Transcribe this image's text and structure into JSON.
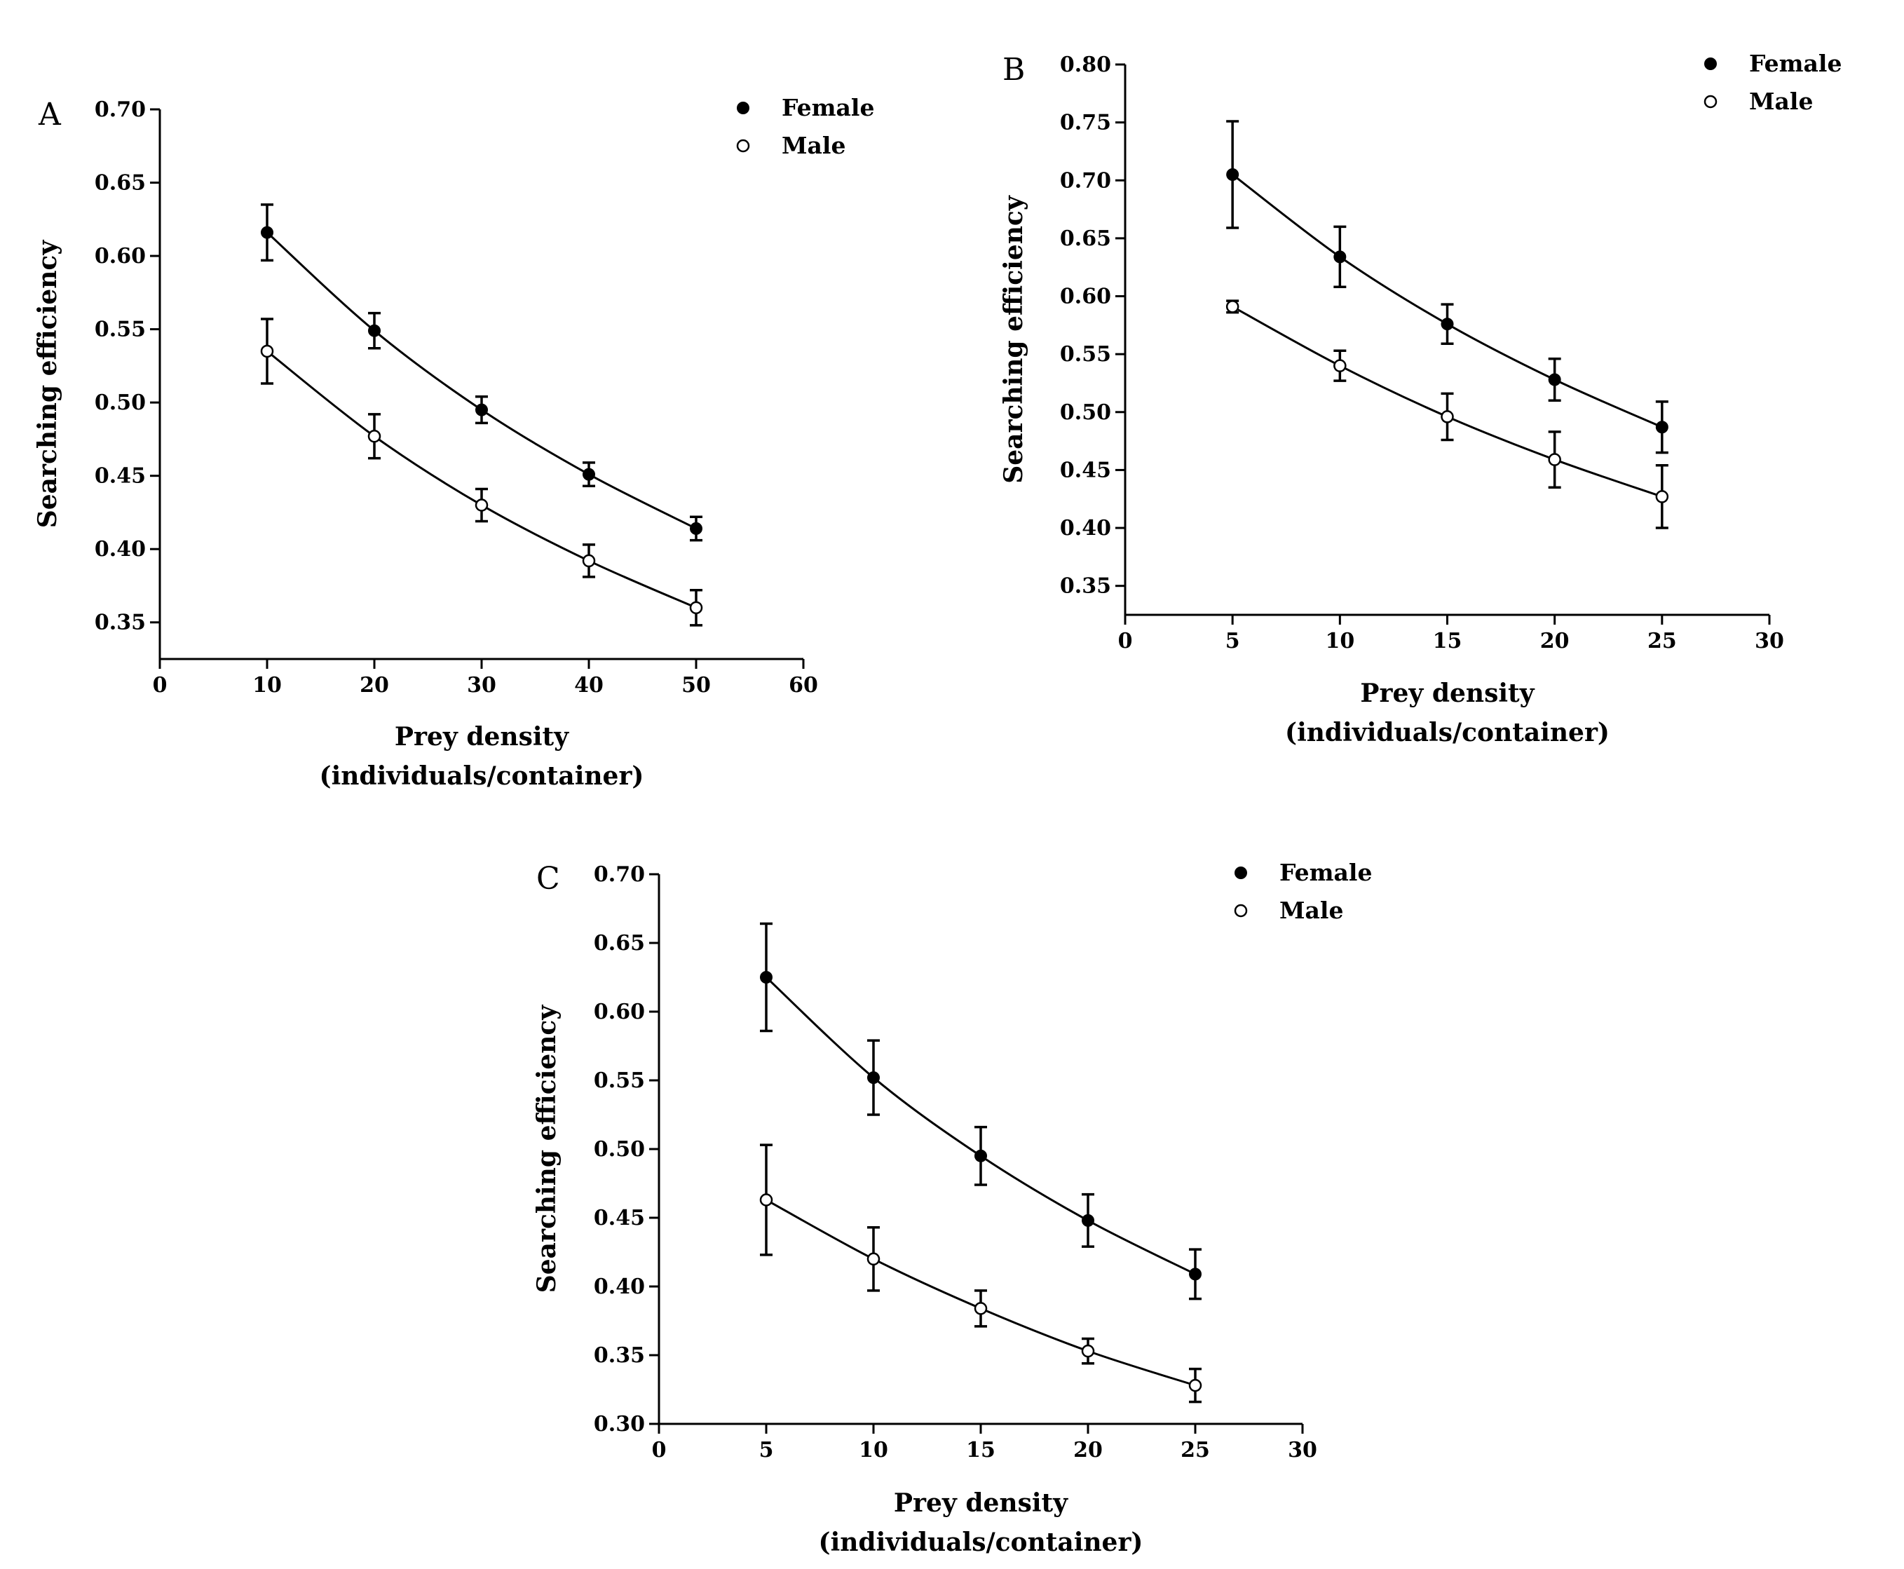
{
  "chart_data": [
    {
      "panel": "A",
      "type": "scatter",
      "title": "",
      "xlabel_line1": "Prey density",
      "xlabel_line2": "(individuals/container)",
      "ylabel": "Searching efficiency",
      "xlim": [
        0,
        60
      ],
      "ylim": [
        0.325,
        0.7
      ],
      "xticks": [
        0,
        10,
        20,
        30,
        40,
        50,
        60
      ],
      "xtick_labels": [
        "0",
        "10",
        "20",
        "30",
        "40",
        "50",
        "60"
      ],
      "yticks": [
        0.35,
        0.4,
        0.45,
        0.5,
        0.55,
        0.6,
        0.65,
        0.7
      ],
      "ytick_labels": [
        "0.35",
        "0.40",
        "0.45",
        "0.50",
        "0.55",
        "0.60",
        "0.65",
        "0.70"
      ],
      "legend_position": "top-right",
      "series": [
        {
          "name": "Female",
          "marker": "filled-circle",
          "x": [
            10,
            20,
            30,
            40,
            50
          ],
          "values": [
            0.616,
            0.549,
            0.495,
            0.451,
            0.414
          ],
          "errors": [
            0.019,
            0.012,
            0.009,
            0.008,
            0.008
          ],
          "fit": [
            0.616,
            0.549,
            0.495,
            0.451,
            0.414
          ]
        },
        {
          "name": "Male",
          "marker": "open-circle",
          "x": [
            10,
            20,
            30,
            40,
            50
          ],
          "values": [
            0.535,
            0.477,
            0.43,
            0.392,
            0.36
          ],
          "errors": [
            0.022,
            0.015,
            0.011,
            0.011,
            0.012
          ],
          "fit": [
            0.535,
            0.477,
            0.43,
            0.392,
            0.36
          ]
        }
      ]
    },
    {
      "panel": "B",
      "type": "scatter",
      "title": "",
      "xlabel_line1": "Prey density",
      "xlabel_line2": "(individuals/container)",
      "ylabel": "Searching efficiency",
      "xlim": [
        0,
        30
      ],
      "ylim": [
        0.325,
        0.8
      ],
      "xticks": [
        0,
        5,
        10,
        15,
        20,
        25,
        30
      ],
      "xtick_labels": [
        "0",
        "5",
        "10",
        "15",
        "20",
        "25",
        "30"
      ],
      "yticks": [
        0.35,
        0.4,
        0.45,
        0.5,
        0.55,
        0.6,
        0.65,
        0.7,
        0.75,
        0.8
      ],
      "ytick_labels": [
        "0.35",
        "0.40",
        "0.45",
        "0.50",
        "0.55",
        "0.60",
        "0.65",
        "0.70",
        "0.75",
        "0.80"
      ],
      "legend_position": "top-right",
      "series": [
        {
          "name": "Female",
          "marker": "filled-circle",
          "x": [
            5,
            10,
            15,
            20,
            25
          ],
          "values": [
            0.705,
            0.634,
            0.576,
            0.528,
            0.487
          ],
          "errors": [
            0.046,
            0.026,
            0.017,
            0.018,
            0.022
          ],
          "fit": [
            0.705,
            0.634,
            0.576,
            0.528,
            0.487
          ]
        },
        {
          "name": "Male",
          "marker": "open-circle",
          "x": [
            5,
            10,
            15,
            20,
            25
          ],
          "values": [
            0.591,
            0.54,
            0.496,
            0.459,
            0.427
          ],
          "errors": [
            0.005,
            0.013,
            0.02,
            0.024,
            0.027
          ],
          "fit": [
            0.591,
            0.54,
            0.496,
            0.459,
            0.427
          ]
        }
      ]
    },
    {
      "panel": "C",
      "type": "scatter",
      "title": "",
      "xlabel_line1": "Prey density",
      "xlabel_line2": "(individuals/container)",
      "ylabel": "Searching efficiency",
      "xlim": [
        0,
        30
      ],
      "ylim": [
        0.3,
        0.7
      ],
      "xticks": [
        0,
        5,
        10,
        15,
        20,
        25,
        30
      ],
      "xtick_labels": [
        "0",
        "5",
        "10",
        "15",
        "20",
        "25",
        "30"
      ],
      "yticks": [
        0.3,
        0.35,
        0.4,
        0.45,
        0.5,
        0.55,
        0.6,
        0.65,
        0.7
      ],
      "ytick_labels": [
        "0.30",
        "0.35",
        "0.40",
        "0.45",
        "0.50",
        "0.55",
        "0.60",
        "0.65",
        "0.70"
      ],
      "legend_position": "top-right",
      "series": [
        {
          "name": "Female",
          "marker": "filled-circle",
          "x": [
            5,
            10,
            15,
            20,
            25
          ],
          "values": [
            0.625,
            0.552,
            0.495,
            0.448,
            0.409
          ],
          "errors": [
            0.039,
            0.027,
            0.021,
            0.019,
            0.018
          ],
          "fit": [
            0.625,
            0.552,
            0.495,
            0.448,
            0.409
          ]
        },
        {
          "name": "Male",
          "marker": "open-circle",
          "x": [
            5,
            10,
            15,
            20,
            25
          ],
          "values": [
            0.463,
            0.42,
            0.384,
            0.353,
            0.328
          ],
          "errors": [
            0.04,
            0.023,
            0.013,
            0.009,
            0.012
          ],
          "fit": [
            0.463,
            0.42,
            0.384,
            0.353,
            0.328
          ]
        }
      ]
    }
  ]
}
